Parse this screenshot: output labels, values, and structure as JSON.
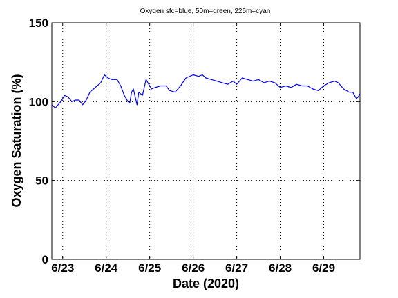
{
  "chart_data": {
    "type": "line",
    "title": "Oxygen sfc=blue, 50m=green, 225m=cyan",
    "xlabel": "Date (2020)",
    "ylabel": "Oxygen Saturation (%)",
    "ylim": [
      0,
      150
    ],
    "xlim": [
      "2020-06-22 18:00",
      "2020-06-29 20:00"
    ],
    "yticks": [
      0,
      50,
      100,
      150
    ],
    "xticks": [
      {
        "date": "2020-06-23",
        "label": "6/23"
      },
      {
        "date": "2020-06-24",
        "label": "6/24"
      },
      {
        "date": "2020-06-25",
        "label": "6/25"
      },
      {
        "date": "2020-06-26",
        "label": "6/26"
      },
      {
        "date": "2020-06-27",
        "label": "6/27"
      },
      {
        "date": "2020-06-28",
        "label": "6/28"
      },
      {
        "date": "2020-06-29",
        "label": "6/29"
      }
    ],
    "grid": true,
    "series": [
      {
        "color": "#0000ff",
        "points": [
          [
            "2020-06-22 18:00",
            98
          ],
          [
            "2020-06-22 20:00",
            96
          ],
          [
            "2020-06-22 23:00",
            100
          ],
          [
            "2020-06-23 01:00",
            104
          ],
          [
            "2020-06-23 03:00",
            103
          ],
          [
            "2020-06-23 05:00",
            100
          ],
          [
            "2020-06-23 07:00",
            101
          ],
          [
            "2020-06-23 09:00",
            101
          ],
          [
            "2020-06-23 11:00",
            98
          ],
          [
            "2020-06-23 13:00",
            101
          ],
          [
            "2020-06-23 15:00",
            106
          ],
          [
            "2020-06-23 17:00",
            108
          ],
          [
            "2020-06-23 19:00",
            110
          ],
          [
            "2020-06-23 21:00",
            112
          ],
          [
            "2020-06-23 23:00",
            117
          ],
          [
            "2020-06-24 01:00",
            115
          ],
          [
            "2020-06-24 03:00",
            114
          ],
          [
            "2020-06-24 06:00",
            114
          ],
          [
            "2020-06-24 08:00",
            110
          ],
          [
            "2020-06-24 10:00",
            104
          ],
          [
            "2020-06-24 12:00",
            100
          ],
          [
            "2020-06-24 13:00",
            99
          ],
          [
            "2020-06-24 14:00",
            106
          ],
          [
            "2020-06-24 15:00",
            108
          ],
          [
            "2020-06-24 16:00",
            103
          ],
          [
            "2020-06-24 17:00",
            98
          ],
          [
            "2020-06-24 18:00",
            106
          ],
          [
            "2020-06-24 19:00",
            105
          ],
          [
            "2020-06-24 20:00",
            104
          ],
          [
            "2020-06-24 21:00",
            109
          ],
          [
            "2020-06-24 22:00",
            114
          ],
          [
            "2020-06-24 23:00",
            112
          ],
          [
            "2020-06-25 01:00",
            108
          ],
          [
            "2020-06-25 03:00",
            109
          ],
          [
            "2020-06-25 06:00",
            110
          ],
          [
            "2020-06-25 09:00",
            110
          ],
          [
            "2020-06-25 11:00",
            107
          ],
          [
            "2020-06-25 14:00",
            106
          ],
          [
            "2020-06-25 17:00",
            110
          ],
          [
            "2020-06-25 20:00",
            115
          ],
          [
            "2020-06-26 00:00",
            117
          ],
          [
            "2020-06-26 03:00",
            116
          ],
          [
            "2020-06-26 05:00",
            117
          ],
          [
            "2020-06-26 07:00",
            115
          ],
          [
            "2020-06-26 10:00",
            114
          ],
          [
            "2020-06-26 13:00",
            113
          ],
          [
            "2020-06-26 16:00",
            112
          ],
          [
            "2020-06-26 19:00",
            111
          ],
          [
            "2020-06-26 22:00",
            113
          ],
          [
            "2020-06-27 00:00",
            111
          ],
          [
            "2020-06-27 03:00",
            115
          ],
          [
            "2020-06-27 06:00",
            114
          ],
          [
            "2020-06-27 09:00",
            113
          ],
          [
            "2020-06-27 12:00",
            114
          ],
          [
            "2020-06-27 15:00",
            112
          ],
          [
            "2020-06-27 18:00",
            113
          ],
          [
            "2020-06-27 21:00",
            112
          ],
          [
            "2020-06-28 00:00",
            109
          ],
          [
            "2020-06-28 03:00",
            110
          ],
          [
            "2020-06-28 06:00",
            109
          ],
          [
            "2020-06-28 09:00",
            111
          ],
          [
            "2020-06-28 12:00",
            110
          ],
          [
            "2020-06-28 15:00",
            110
          ],
          [
            "2020-06-28 18:00",
            108
          ],
          [
            "2020-06-28 21:00",
            107
          ],
          [
            "2020-06-29 00:00",
            110
          ],
          [
            "2020-06-29 03:00",
            112
          ],
          [
            "2020-06-29 06:00",
            113
          ],
          [
            "2020-06-29 08:00",
            112
          ],
          [
            "2020-06-29 11:00",
            108
          ],
          [
            "2020-06-29 14:00",
            106
          ],
          [
            "2020-06-29 16:00",
            106
          ],
          [
            "2020-06-29 17:00",
            104
          ],
          [
            "2020-06-29 18:00",
            102
          ],
          [
            "2020-06-29 19:00",
            103
          ],
          [
            "2020-06-29 20:00",
            105
          ]
        ]
      }
    ]
  }
}
